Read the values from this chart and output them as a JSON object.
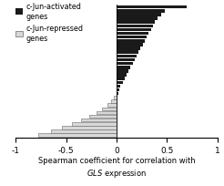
{
  "xlim": [
    -1,
    1
  ],
  "xticks": [
    -1,
    -0.5,
    0,
    0.5,
    1
  ],
  "xtick_labels": [
    "-1",
    "-0.5",
    "0",
    "0.5",
    "1"
  ],
  "activated_values": [
    0.7,
    0.48,
    0.44,
    0.41,
    0.38,
    0.36,
    0.34,
    0.32,
    0.3,
    0.28,
    0.26,
    0.24,
    0.22,
    0.2,
    0.18,
    0.16,
    0.14,
    0.12,
    0.1,
    0.08,
    0.06,
    0.04,
    0.03,
    0.02
  ],
  "repressed_values": [
    -0.03,
    -0.05,
    -0.09,
    -0.14,
    -0.2,
    -0.27,
    -0.35,
    -0.44,
    -0.54,
    -0.65,
    -0.78
  ],
  "activated_color": "#1a1a1a",
  "repressed_facecolor": "#d8d8d8",
  "repressed_edgecolor": "#666666",
  "background_color": "#ffffff",
  "bar_height": 0.85,
  "legend_activated": "c-Jun-activated\ngenes",
  "legend_repressed": "c-Jun-repressed\ngenes",
  "xlabel_fontsize": 6.0,
  "tick_fontsize": 6.5,
  "legend_fontsize": 5.8
}
